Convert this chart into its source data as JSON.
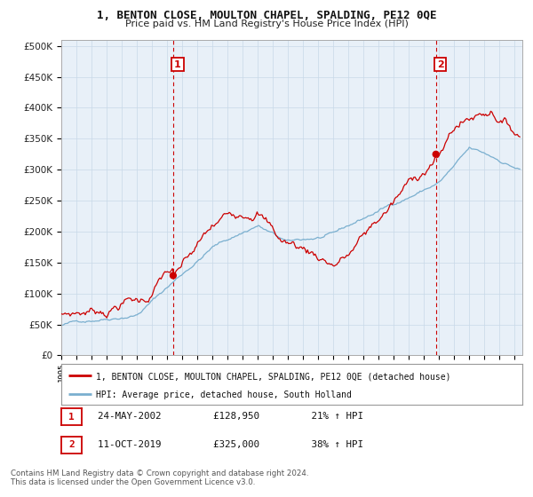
{
  "title": "1, BENTON CLOSE, MOULTON CHAPEL, SPALDING, PE12 0QE",
  "subtitle": "Price paid vs. HM Land Registry's House Price Index (HPI)",
  "legend_line1": "1, BENTON CLOSE, MOULTON CHAPEL, SPALDING, PE12 0QE (detached house)",
  "legend_line2": "HPI: Average price, detached house, South Holland",
  "annotation1": {
    "num": "1",
    "date": "24-MAY-2002",
    "price": "£128,950",
    "hpi": "21% ↑ HPI",
    "x_year": 2002.4
  },
  "annotation2": {
    "num": "2",
    "date": "11-OCT-2019",
    "price": "£325,000",
    "hpi": "38% ↑ HPI",
    "x_year": 2019.78
  },
  "footer_line1": "Contains HM Land Registry data © Crown copyright and database right 2024.",
  "footer_line2": "This data is licensed under the Open Government Licence v3.0.",
  "property_color": "#cc0000",
  "hpi_color": "#7aafcf",
  "vline_color": "#cc0000",
  "chart_bg": "#e8f0f8",
  "background_color": "#ffffff",
  "grid_color": "#c8d8e8",
  "ylim": [
    0,
    500000
  ],
  "xlim_start": 1995.0,
  "xlim_end": 2025.5,
  "sale1_year": 2002.4,
  "sale1_price": 128950,
  "sale2_year": 2019.78,
  "sale2_price": 325000
}
